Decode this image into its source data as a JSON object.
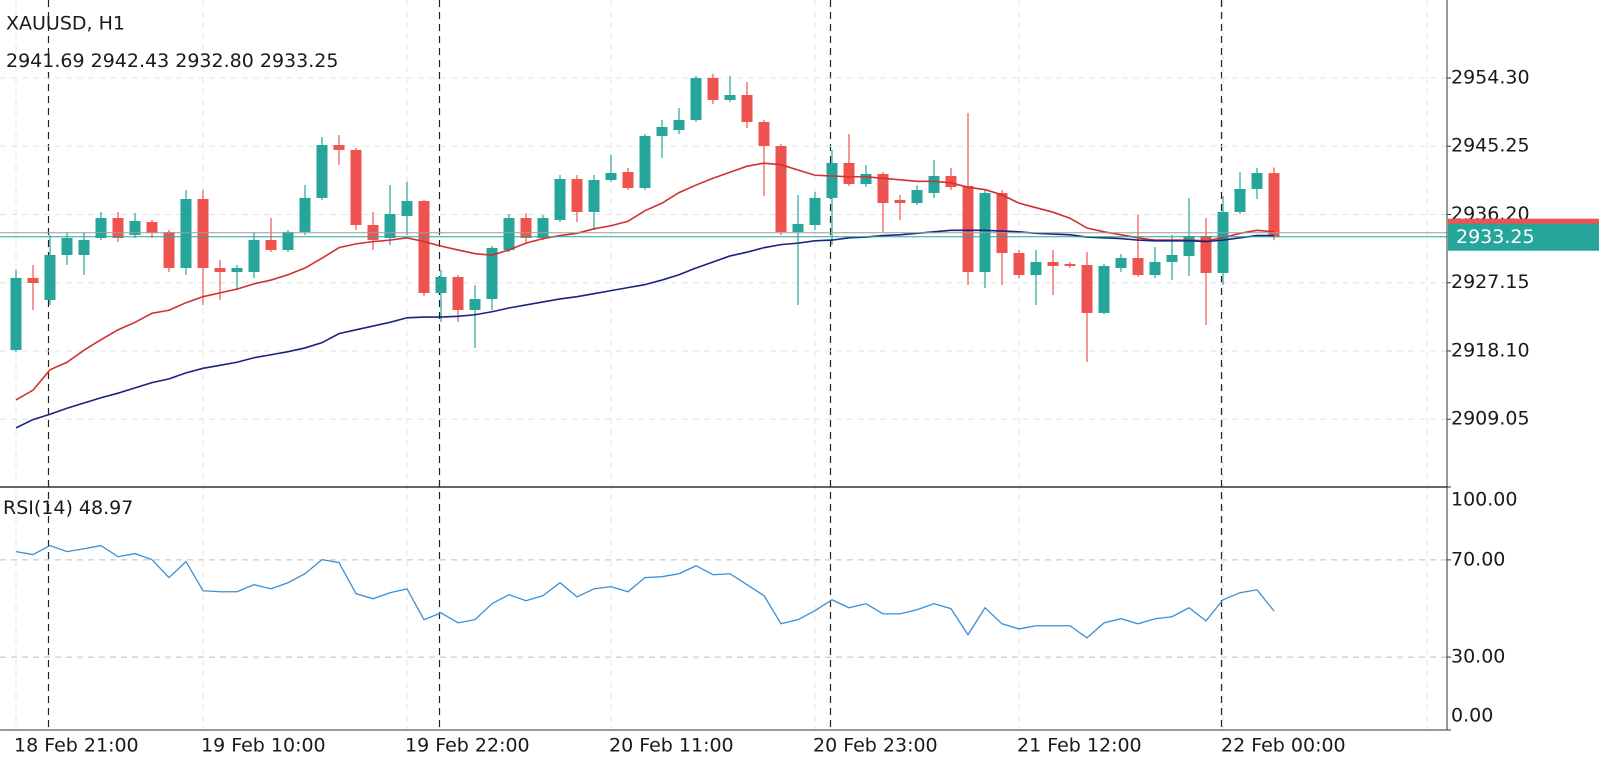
{
  "chart_data": [
    {
      "type": "candlestick",
      "title": "XAUUSD, H1",
      "ohlc_labels": [
        "2941.69",
        "2942.43",
        "2932.80",
        "2933.25"
      ],
      "last_price_label": "2933.25",
      "categories": [
        "18 Feb 21:00",
        null,
        null,
        null,
        null,
        null,
        null,
        null,
        null,
        null,
        null,
        "19 Feb 10:00",
        null,
        null,
        null,
        null,
        null,
        null,
        null,
        null,
        null,
        null,
        null,
        "19 Feb 22:00",
        null,
        null,
        null,
        null,
        null,
        null,
        null,
        null,
        null,
        null,
        null,
        "20 Feb 11:00",
        null,
        null,
        null,
        null,
        null,
        null,
        null,
        null,
        null,
        null,
        null,
        "20 Feb 23:00",
        null,
        null,
        null,
        null,
        null,
        null,
        null,
        null,
        null,
        null,
        null,
        "21 Feb 12:00",
        null,
        null,
        null,
        null,
        null,
        null,
        null,
        null,
        null,
        null,
        null,
        "22 Feb 00:00",
        null,
        null,
        null
      ],
      "open": [
        2918.23,
        2927.78,
        2924.86,
        2930.83,
        2930.83,
        2933.08,
        2935.73,
        2933.48,
        2935.2,
        2933.88,
        2929.1,
        2938.25,
        2929.1,
        2928.57,
        2928.57,
        2932.82,
        2931.49,
        2933.88,
        2938.39,
        2945.41,
        2944.75,
        2934.8,
        2933.08,
        2936.0,
        2937.99,
        2925.79,
        2927.91,
        2923.53,
        2924.99,
        2931.49,
        2935.73,
        2933.08,
        2935.47,
        2940.9,
        2936.53,
        2940.77,
        2941.83,
        2939.71,
        2946.61,
        2947.4,
        2948.73,
        2954.3,
        2951.38,
        2952.04,
        2948.46,
        2945.28,
        2933.88,
        2934.8,
        2938.39,
        2943.03,
        2940.24,
        2941.57,
        2938.12,
        2937.72,
        2939.05,
        2941.3,
        2939.98,
        2928.57,
        2939.05,
        2931.09,
        2928.17,
        2929.9,
        2929.63,
        2929.5,
        2923.14,
        2929.1,
        2930.43,
        2928.17,
        2929.9,
        2930.69,
        2933.35,
        2928.44,
        2936.53,
        2939.58,
        2941.69
      ],
      "high": [
        2928.84,
        2929.5,
        2933.48,
        2933.88,
        2933.88,
        2936.53,
        2936.53,
        2936.4,
        2935.47,
        2934.14,
        2939.45,
        2939.45,
        2930.16,
        2929.5,
        2933.88,
        2935.73,
        2934.14,
        2940.11,
        2946.47,
        2946.74,
        2945.02,
        2936.53,
        2940.11,
        2940.51,
        2938.12,
        2928.84,
        2928.17,
        2926.85,
        2932.02,
        2936.26,
        2936.4,
        2936.13,
        2941.43,
        2941.43,
        2941.43,
        2944.09,
        2942.36,
        2946.87,
        2948.73,
        2950.32,
        2954.56,
        2954.83,
        2954.56,
        2953.77,
        2948.73,
        2945.55,
        2938.78,
        2939.18,
        2944.75,
        2946.87,
        2942.76,
        2941.83,
        2938.78,
        2940.11,
        2943.42,
        2942.36,
        2949.66,
        2939.45,
        2939.45,
        2931.49,
        2931.49,
        2931.49,
        2929.9,
        2931.22,
        2929.63,
        2930.96,
        2936.13,
        2931.89,
        2933.48,
        2938.39,
        2935.73,
        2938.65,
        2941.83,
        2942.36,
        2942.43
      ],
      "low": [
        2917.96,
        2923.53,
        2924.2,
        2929.5,
        2928.17,
        2932.82,
        2932.55,
        2933.08,
        2933.08,
        2928.57,
        2928.17,
        2924.2,
        2924.86,
        2926.19,
        2927.78,
        2931.22,
        2931.22,
        2933.48,
        2938.12,
        2942.76,
        2934.14,
        2931.49,
        2932.15,
        2933.48,
        2925.39,
        2921.94,
        2921.94,
        2918.5,
        2923.53,
        2931.22,
        2932.29,
        2932.82,
        2935.2,
        2935.2,
        2934.14,
        2940.51,
        2939.45,
        2939.45,
        2943.69,
        2946.87,
        2948.46,
        2950.85,
        2951.11,
        2947.67,
        2938.65,
        2933.48,
        2924.2,
        2934.14,
        2932.15,
        2939.98,
        2939.84,
        2933.88,
        2935.47,
        2937.46,
        2938.39,
        2939.45,
        2926.85,
        2926.45,
        2926.85,
        2927.78,
        2924.2,
        2925.52,
        2929.1,
        2916.64,
        2923.0,
        2928.57,
        2927.91,
        2927.78,
        2927.51,
        2928.04,
        2921.54,
        2926.85,
        2936.26,
        2938.25,
        2932.8
      ],
      "close": [
        2927.78,
        2927.11,
        2930.83,
        2933.08,
        2932.82,
        2935.73,
        2933.08,
        2935.34,
        2933.74,
        2929.1,
        2938.25,
        2929.1,
        2928.57,
        2929.1,
        2932.82,
        2931.49,
        2933.88,
        2938.39,
        2945.41,
        2944.75,
        2934.8,
        2932.82,
        2936.26,
        2937.99,
        2925.79,
        2927.91,
        2923.53,
        2924.99,
        2931.76,
        2935.73,
        2933.08,
        2935.73,
        2940.9,
        2936.53,
        2940.77,
        2941.7,
        2939.71,
        2946.61,
        2947.8,
        2948.73,
        2954.3,
        2951.38,
        2952.04,
        2948.46,
        2945.28,
        2933.88,
        2934.94,
        2938.39,
        2943.03,
        2940.24,
        2941.57,
        2937.72,
        2937.72,
        2939.45,
        2941.3,
        2939.84,
        2928.57,
        2939.05,
        2931.09,
        2928.17,
        2929.9,
        2929.37,
        2929.37,
        2923.14,
        2929.37,
        2930.43,
        2928.17,
        2929.9,
        2930.83,
        2933.35,
        2928.44,
        2936.53,
        2939.58,
        2941.7,
        2933.25
      ],
      "up_color": "#26a69a",
      "down_color": "#ef5350",
      "overlays": [
        {
          "color": "#d32f2f",
          "values": [
            2911.6,
            2912.9,
            2915.6,
            2916.6,
            2918.2,
            2919.6,
            2920.9,
            2921.9,
            2923.1,
            2923.5,
            2924.5,
            2925.3,
            2925.8,
            2926.3,
            2927.0,
            2927.5,
            2928.2,
            2929.1,
            2930.4,
            2931.8,
            2932.3,
            2932.6,
            2932.8,
            2933.1,
            2932.6,
            2932.0,
            2931.5,
            2931.0,
            2930.8,
            2931.5,
            2932.4,
            2933.0,
            2933.4,
            2933.7,
            2934.3,
            2934.7,
            2935.3,
            2936.7,
            2937.7,
            2939.1,
            2940.1,
            2941.0,
            2941.8,
            2942.6,
            2943.0,
            2942.8,
            2942.1,
            2941.4,
            2941.3,
            2941.2,
            2941.2,
            2941.0,
            2940.8,
            2940.6,
            2940.6,
            2940.4,
            2939.8,
            2939.5,
            2938.8,
            2937.7,
            2937.1,
            2936.5,
            2935.7,
            2934.4,
            2933.9,
            2933.5,
            2933.1,
            2932.8,
            2932.8,
            2932.8,
            2932.7,
            2933.1,
            2933.7,
            2934.1,
            2933.9
          ]
        },
        {
          "color": "#1a237e",
          "values": [
            2907.9,
            2909.0,
            2909.7,
            2910.5,
            2911.2,
            2911.9,
            2912.5,
            2913.2,
            2913.9,
            2914.4,
            2915.2,
            2915.8,
            2916.2,
            2916.6,
            2917.2,
            2917.6,
            2918.0,
            2918.5,
            2919.2,
            2920.4,
            2920.9,
            2921.4,
            2921.9,
            2922.5,
            2922.6,
            2922.6,
            2922.7,
            2922.9,
            2923.3,
            2923.8,
            2924.2,
            2924.6,
            2925.0,
            2925.3,
            2925.7,
            2926.1,
            2926.5,
            2926.9,
            2927.5,
            2928.2,
            2929.1,
            2929.9,
            2930.7,
            2931.2,
            2931.8,
            2932.2,
            2932.4,
            2932.7,
            2932.8,
            2933.1,
            2933.2,
            2933.4,
            2933.5,
            2933.7,
            2933.9,
            2934.1,
            2934.1,
            2934.1,
            2934.0,
            2933.9,
            2933.7,
            2933.6,
            2933.5,
            2933.2,
            2933.1,
            2933.0,
            2932.8,
            2932.7,
            2932.7,
            2932.7,
            2932.6,
            2932.8,
            2933.1,
            2933.4,
            2933.4
          ]
        }
      ],
      "ylim": [
        2900.06,
        2964.64
      ],
      "yticks": [
        {
          "value": 2954.3,
          "label": "2954.30"
        },
        2945.25,
        {
          "value": 2936.2,
          "label": "2936.20"
        },
        2927.15,
        {
          "value": 2918.1,
          "label": "2918.10"
        },
        2909.05
      ],
      "grid": true
    },
    {
      "type": "line",
      "title": "RSI(14)",
      "series": [
        {
          "color": "#3a8fd4",
          "values": [
            73.4,
            72.2,
            75.9,
            73.4,
            74.6,
            75.9,
            71.3,
            72.6,
            70.1,
            62.7,
            69.3,
            57.3,
            56.9,
            56.9,
            59.8,
            58.1,
            60.6,
            64.3,
            70.1,
            68.9,
            56.1,
            54.0,
            56.5,
            58.1,
            45.4,
            48.2,
            44.1,
            45.4,
            52.0,
            55.7,
            53.2,
            55.3,
            60.6,
            54.8,
            58.1,
            59.0,
            56.9,
            62.7,
            63.1,
            64.3,
            67.6,
            63.9,
            64.3,
            59.8,
            55.3,
            43.7,
            45.4,
            49.1,
            53.6,
            50.3,
            52.0,
            47.8,
            47.8,
            49.5,
            52.0,
            49.9,
            39.2,
            50.3,
            43.7,
            41.6,
            42.9,
            42.9,
            42.9,
            37.9,
            44.1,
            45.8,
            43.7,
            45.8,
            46.6,
            50.3,
            44.9,
            53.6,
            56.5,
            57.7,
            48.97
          ]
        }
      ],
      "ylim": [
        0,
        100
      ],
      "yticks": [
        {
          "value": 100,
          "label": "100.00"
        },
        {
          "value": 70,
          "label": "70.00"
        },
        {
          "value": 30,
          "label": "30.00"
        },
        {
          "value": 0,
          "label": "0.00"
        }
      ],
      "grid": true
    }
  ]
}
